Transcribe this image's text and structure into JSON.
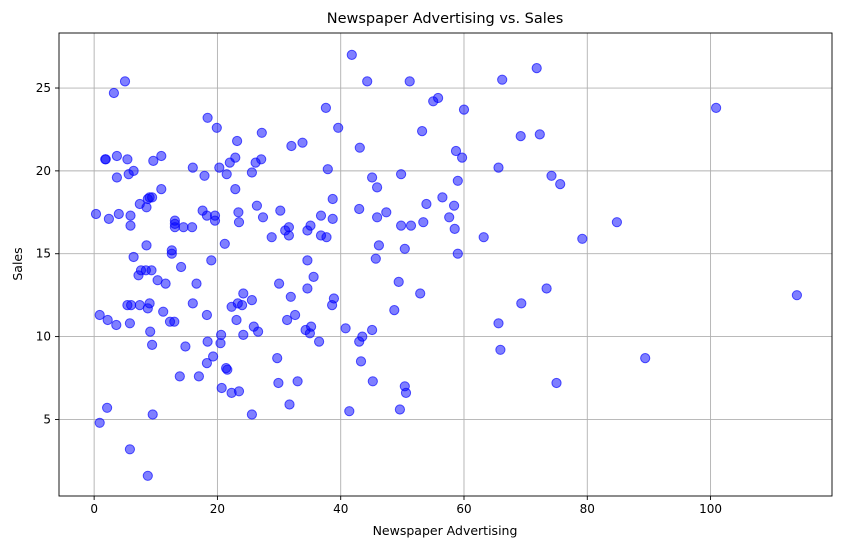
{
  "chart_data": {
    "type": "scatter",
    "title": "Newspaper Advertising vs. Sales",
    "xlabel": "Newspaper Advertising",
    "ylabel": "Sales",
    "xlim": [
      -5.7,
      119.7
    ],
    "ylim": [
      0.38,
      28.32
    ],
    "xticks": [
      0,
      20,
      40,
      60,
      80,
      100
    ],
    "yticks": [
      5,
      10,
      15,
      20,
      25
    ],
    "grid": true,
    "marker_color": "#0000ff",
    "marker_alpha": 0.5,
    "points": [
      [
        0.3,
        17.4
      ],
      [
        0.9,
        11.3
      ],
      [
        0.9,
        4.8
      ],
      [
        1.8,
        20.7
      ],
      [
        1.9,
        20.7
      ],
      [
        2.1,
        5.7
      ],
      [
        2.2,
        11.0
      ],
      [
        2.4,
        17.1
      ],
      [
        3.2,
        24.7
      ],
      [
        3.6,
        10.7
      ],
      [
        3.7,
        19.6
      ],
      [
        3.7,
        20.9
      ],
      [
        4.0,
        17.4
      ],
      [
        5.0,
        25.4
      ],
      [
        5.4,
        20.7
      ],
      [
        5.4,
        11.9
      ],
      [
        5.6,
        19.8
      ],
      [
        5.8,
        3.2
      ],
      [
        5.8,
        10.8
      ],
      [
        5.9,
        17.3
      ],
      [
        5.9,
        16.7
      ],
      [
        6.0,
        11.9
      ],
      [
        6.4,
        20.0
      ],
      [
        6.4,
        14.8
      ],
      [
        7.2,
        13.7
      ],
      [
        7.4,
        11.9
      ],
      [
        7.4,
        18.0
      ],
      [
        7.6,
        14.0
      ],
      [
        8.4,
        14.0
      ],
      [
        8.5,
        15.5
      ],
      [
        8.5,
        17.8
      ],
      [
        8.7,
        1.6
      ],
      [
        8.7,
        11.7
      ],
      [
        8.7,
        18.3
      ],
      [
        9.0,
        18.4
      ],
      [
        9.0,
        12.0
      ],
      [
        9.1,
        10.3
      ],
      [
        9.3,
        14.0
      ],
      [
        9.4,
        18.4
      ],
      [
        9.4,
        9.5
      ],
      [
        9.5,
        5.3
      ],
      [
        9.6,
        20.6
      ],
      [
        10.3,
        13.4
      ],
      [
        10.9,
        20.9
      ],
      [
        10.9,
        18.9
      ],
      [
        11.2,
        11.5
      ],
      [
        11.6,
        13.2
      ],
      [
        12.3,
        10.9
      ],
      [
        12.6,
        15.2
      ],
      [
        12.6,
        15.0
      ],
      [
        13.0,
        10.9
      ],
      [
        13.1,
        16.6
      ],
      [
        13.1,
        17.0
      ],
      [
        13.1,
        16.8
      ],
      [
        13.9,
        7.6
      ],
      [
        14.1,
        14.2
      ],
      [
        14.5,
        16.6
      ],
      [
        14.8,
        9.4
      ],
      [
        15.9,
        16.6
      ],
      [
        16.0,
        12.0
      ],
      [
        16.0,
        20.2
      ],
      [
        16.6,
        13.2
      ],
      [
        17.0,
        7.6
      ],
      [
        17.6,
        17.6
      ],
      [
        17.9,
        19.7
      ],
      [
        18.3,
        8.4
      ],
      [
        18.3,
        11.3
      ],
      [
        18.3,
        17.3
      ],
      [
        18.4,
        23.2
      ],
      [
        18.4,
        9.7
      ],
      [
        19.0,
        14.6
      ],
      [
        19.3,
        8.8
      ],
      [
        19.6,
        17.0
      ],
      [
        19.6,
        17.3
      ],
      [
        19.9,
        22.6
      ],
      [
        20.3,
        20.2
      ],
      [
        20.5,
        9.6
      ],
      [
        20.6,
        10.1
      ],
      [
        20.7,
        6.9
      ],
      [
        21.2,
        15.6
      ],
      [
        21.4,
        8.1
      ],
      [
        21.5,
        19.8
      ],
      [
        21.6,
        8.0
      ],
      [
        22.0,
        20.5
      ],
      [
        22.3,
        11.8
      ],
      [
        22.3,
        6.6
      ],
      [
        22.9,
        18.9
      ],
      [
        22.9,
        20.8
      ],
      [
        23.1,
        11.0
      ],
      [
        23.2,
        21.8
      ],
      [
        23.3,
        12.0
      ],
      [
        23.4,
        17.5
      ],
      [
        23.5,
        6.7
      ],
      [
        23.5,
        16.9
      ],
      [
        24.0,
        11.9
      ],
      [
        24.2,
        10.1
      ],
      [
        24.2,
        12.6
      ],
      [
        25.6,
        19.9
      ],
      [
        25.6,
        12.2
      ],
      [
        25.6,
        5.3
      ],
      [
        25.9,
        10.6
      ],
      [
        26.2,
        20.5
      ],
      [
        26.4,
        17.9
      ],
      [
        26.6,
        10.3
      ],
      [
        27.1,
        20.7
      ],
      [
        27.2,
        22.3
      ],
      [
        27.4,
        17.2
      ],
      [
        28.8,
        16.0
      ],
      [
        29.7,
        8.7
      ],
      [
        29.9,
        7.2
      ],
      [
        30.0,
        13.2
      ],
      [
        30.2,
        17.6
      ],
      [
        31.0,
        16.4
      ],
      [
        31.3,
        11.0
      ],
      [
        31.6,
        16.6
      ],
      [
        31.6,
        16.1
      ],
      [
        31.7,
        5.9
      ],
      [
        31.9,
        12.4
      ],
      [
        32.0,
        21.5
      ],
      [
        32.6,
        11.3
      ],
      [
        33.0,
        7.3
      ],
      [
        33.8,
        21.7
      ],
      [
        34.3,
        10.4
      ],
      [
        34.6,
        14.6
      ],
      [
        34.6,
        16.4
      ],
      [
        34.6,
        12.9
      ],
      [
        35.0,
        10.2
      ],
      [
        35.1,
        16.7
      ],
      [
        35.2,
        10.6
      ],
      [
        35.6,
        13.6
      ],
      [
        36.5,
        9.7
      ],
      [
        36.8,
        17.3
      ],
      [
        36.8,
        16.1
      ],
      [
        37.6,
        23.8
      ],
      [
        37.7,
        16.0
      ],
      [
        37.9,
        20.1
      ],
      [
        38.6,
        11.9
      ],
      [
        38.7,
        17.1
      ],
      [
        38.7,
        18.3
      ],
      [
        38.9,
        12.3
      ],
      [
        39.6,
        22.6
      ],
      [
        40.8,
        10.5
      ],
      [
        41.4,
        5.5
      ],
      [
        41.8,
        27.0
      ],
      [
        43.0,
        9.7
      ],
      [
        43.0,
        17.7
      ],
      [
        43.1,
        21.4
      ],
      [
        43.3,
        8.5
      ],
      [
        43.5,
        10.0
      ],
      [
        44.3,
        25.4
      ],
      [
        45.1,
        19.6
      ],
      [
        45.1,
        10.4
      ],
      [
        45.2,
        7.3
      ],
      [
        45.7,
        14.7
      ],
      [
        45.9,
        19.0
      ],
      [
        45.9,
        17.2
      ],
      [
        46.2,
        15.5
      ],
      [
        47.4,
        17.5
      ],
      [
        48.7,
        11.6
      ],
      [
        49.4,
        13.3
      ],
      [
        49.6,
        5.6
      ],
      [
        49.8,
        16.7
      ],
      [
        49.8,
        19.8
      ],
      [
        50.4,
        15.3
      ],
      [
        50.4,
        7.0
      ],
      [
        50.6,
        6.6
      ],
      [
        51.2,
        25.4
      ],
      [
        51.4,
        16.7
      ],
      [
        52.9,
        12.6
      ],
      [
        53.2,
        22.4
      ],
      [
        53.4,
        16.9
      ],
      [
        53.9,
        18.0
      ],
      [
        55.0,
        24.2
      ],
      [
        55.8,
        24.4
      ],
      [
        56.5,
        18.4
      ],
      [
        57.6,
        17.2
      ],
      [
        58.4,
        17.9
      ],
      [
        58.5,
        16.5
      ],
      [
        58.7,
        21.2
      ],
      [
        59.0,
        15.0
      ],
      [
        59.0,
        19.4
      ],
      [
        59.7,
        20.8
      ],
      [
        60.0,
        23.7
      ],
      [
        63.2,
        16.0
      ],
      [
        65.6,
        10.8
      ],
      [
        65.6,
        20.2
      ],
      [
        65.9,
        9.2
      ],
      [
        66.2,
        25.5
      ],
      [
        69.2,
        22.1
      ],
      [
        69.3,
        12.0
      ],
      [
        71.8,
        26.2
      ],
      [
        72.3,
        22.2
      ],
      [
        73.4,
        12.9
      ],
      [
        74.2,
        19.7
      ],
      [
        75.0,
        7.2
      ],
      [
        75.6,
        19.2
      ],
      [
        79.2,
        15.9
      ],
      [
        84.8,
        16.9
      ],
      [
        89.4,
        8.7
      ],
      [
        100.9,
        23.8
      ],
      [
        114.0,
        12.5
      ]
    ]
  }
}
